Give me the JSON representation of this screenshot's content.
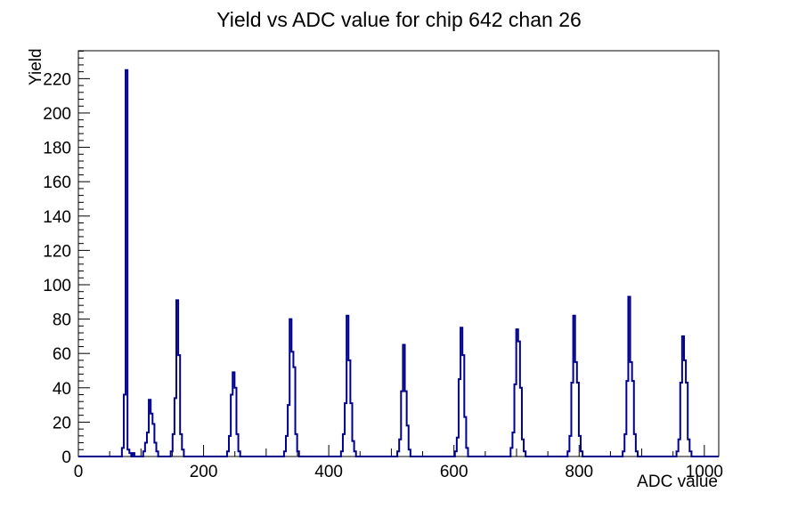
{
  "title": "Yield vs ADC value for chip 642 chan 26",
  "chart_data": {
    "type": "bar",
    "title": "Yield vs ADC value for chip 642 chan 26",
    "xlabel": "ADC value",
    "ylabel": "Yield",
    "xlim": [
      0,
      1023
    ],
    "ylim": [
      0,
      236.25
    ],
    "grid": false,
    "legend": "none",
    "line_color": "#00008b",
    "axis_color": "#000000",
    "background_color": "#ffffff",
    "x_axis": {
      "tick_labels": [
        "0",
        "200",
        "400",
        "600",
        "800",
        "1000"
      ],
      "label_values": [
        0,
        200,
        400,
        600,
        800,
        1000
      ],
      "major_step": 200,
      "medium_step": 100,
      "minor_step": 50
    },
    "y_axis": {
      "tick_labels": [
        "0",
        "20",
        "40",
        "60",
        "80",
        "100",
        "120",
        "140",
        "160",
        "180",
        "200",
        "220"
      ],
      "label_values": [
        0,
        20,
        40,
        60,
        80,
        100,
        120,
        140,
        160,
        180,
        200,
        220
      ],
      "major_step": 20,
      "minor_step": 4
    },
    "bin_half_width": 1.5,
    "peak_summary": {
      "centers_adc": [
        77,
        114,
        158,
        248,
        339,
        430,
        520,
        612,
        701,
        792,
        880,
        966
      ],
      "peak_heights": [
        225,
        33,
        91,
        49,
        80,
        82,
        65,
        75,
        74,
        82,
        93,
        70
      ]
    },
    "clusters": [
      [
        [
          71,
          5
        ],
        [
          74,
          36
        ],
        [
          77,
          225
        ],
        [
          80,
          4
        ],
        [
          83,
          2
        ]
      ],
      [
        [
          88,
          2
        ]
      ],
      [
        [
          105,
          3
        ],
        [
          108,
          8
        ],
        [
          111,
          14
        ],
        [
          114,
          33
        ],
        [
          117,
          25
        ],
        [
          120,
          19
        ],
        [
          123,
          8
        ],
        [
          126,
          3
        ]
      ],
      [
        [
          149,
          3
        ],
        [
          152,
          13
        ],
        [
          155,
          34
        ],
        [
          158,
          91
        ],
        [
          161,
          59
        ],
        [
          164,
          13
        ],
        [
          167,
          4
        ]
      ],
      [
        [
          239,
          3
        ],
        [
          242,
          12
        ],
        [
          245,
          36
        ],
        [
          248,
          49
        ],
        [
          251,
          40
        ],
        [
          254,
          13
        ],
        [
          257,
          3
        ]
      ],
      [
        [
          330,
          3
        ],
        [
          333,
          12
        ],
        [
          336,
          30
        ],
        [
          339,
          80
        ],
        [
          342,
          61
        ],
        [
          345,
          52
        ],
        [
          348,
          13
        ],
        [
          351,
          3
        ]
      ],
      [
        [
          421,
          3
        ],
        [
          424,
          13
        ],
        [
          427,
          31
        ],
        [
          430,
          82
        ],
        [
          433,
          56
        ],
        [
          436,
          31
        ],
        [
          439,
          9
        ],
        [
          442,
          3
        ]
      ],
      [
        [
          511,
          3
        ],
        [
          514,
          10
        ],
        [
          517,
          38
        ],
        [
          520,
          65
        ],
        [
          523,
          38
        ],
        [
          526,
          18
        ],
        [
          529,
          4
        ]
      ],
      [
        [
          603,
          3
        ],
        [
          606,
          11
        ],
        [
          609,
          45
        ],
        [
          612,
          75
        ],
        [
          615,
          59
        ],
        [
          618,
          23
        ],
        [
          621,
          5
        ]
      ],
      [
        [
          692,
          5
        ],
        [
          695,
          14
        ],
        [
          698,
          42
        ],
        [
          701,
          74
        ],
        [
          704,
          67
        ],
        [
          707,
          40
        ],
        [
          710,
          10
        ],
        [
          713,
          3
        ]
      ],
      [
        [
          783,
          3
        ],
        [
          786,
          12
        ],
        [
          789,
          43
        ],
        [
          792,
          82
        ],
        [
          795,
          55
        ],
        [
          798,
          43
        ],
        [
          801,
          12
        ],
        [
          804,
          3
        ]
      ],
      [
        [
          871,
          3
        ],
        [
          874,
          13
        ],
        [
          877,
          44
        ],
        [
          880,
          93
        ],
        [
          883,
          55
        ],
        [
          886,
          44
        ],
        [
          889,
          13
        ],
        [
          892,
          3
        ]
      ],
      [
        [
          957,
          3
        ],
        [
          960,
          10
        ],
        [
          963,
          43
        ],
        [
          966,
          70
        ],
        [
          969,
          56
        ],
        [
          972,
          43
        ],
        [
          975,
          10
        ],
        [
          978,
          3
        ]
      ]
    ]
  }
}
